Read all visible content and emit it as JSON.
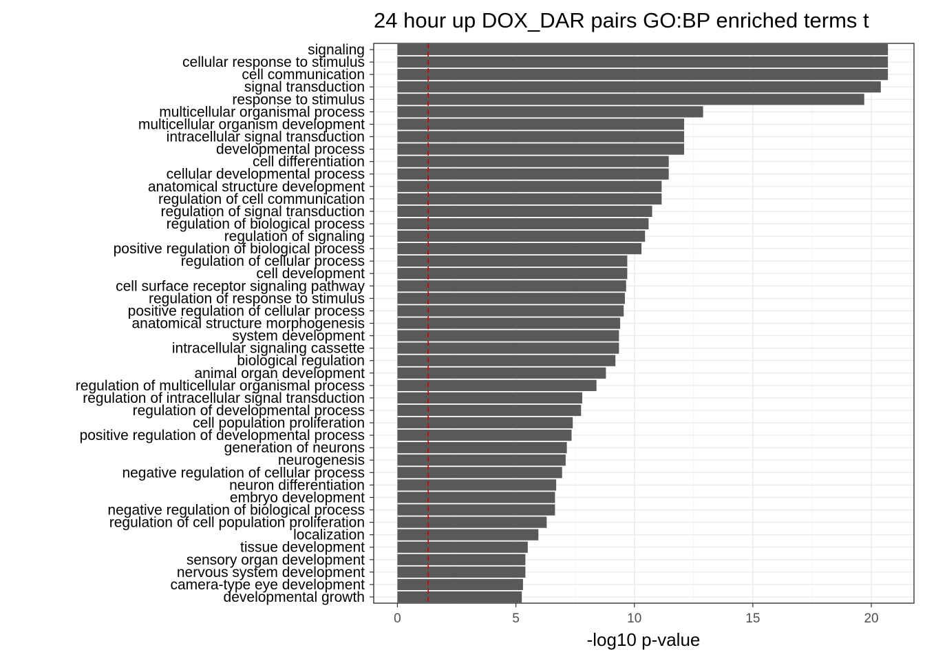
{
  "chart_data": {
    "type": "bar",
    "orientation": "horizontal",
    "title": "24 hour up DOX_DAR pairs GO:BP enriched terms t",
    "xlabel": "-log10 p-value",
    "ylabel": "",
    "xlim": [
      -1.0,
      21.8
    ],
    "x_ticks": [
      0,
      5,
      10,
      15,
      20
    ],
    "grid": true,
    "bar_color": "#595959",
    "threshold": {
      "value": 1.3,
      "color": "#cc0000",
      "style": "dashed"
    },
    "categories": [
      "signaling",
      "cellular response to stimulus",
      "cell communication",
      "signal transduction",
      "response to stimulus",
      "multicellular organismal process",
      "multicellular organism development",
      "intracellular signal transduction",
      "developmental process",
      "cell differentiation",
      "cellular developmental process",
      "anatomical structure development",
      "regulation of cell communication",
      "regulation of signal transduction",
      "regulation of biological process",
      "regulation of signaling",
      "positive regulation of biological process",
      "regulation of cellular process",
      "cell development",
      "cell surface receptor signaling pathway",
      "regulation of response to stimulus",
      "positive regulation of cellular process",
      "anatomical structure morphogenesis",
      "system development",
      "intracellular signaling cassette",
      "biological regulation",
      "animal organ development",
      "regulation of multicellular organismal process",
      "regulation of intracellular signal transduction",
      "regulation of developmental process",
      "cell population proliferation",
      "positive regulation of developmental process",
      "generation of neurons",
      "neurogenesis",
      "negative regulation of cellular process",
      "neuron differentiation",
      "embryo development",
      "negative regulation of biological process",
      "regulation of cell population proliferation",
      "localization",
      "tissue development",
      "sensory organ development",
      "nervous system development",
      "camera-type eye development",
      "developmental growth"
    ],
    "values": [
      20.7,
      20.7,
      20.7,
      20.4,
      19.7,
      12.9,
      12.1,
      12.1,
      12.1,
      11.45,
      11.45,
      11.15,
      11.15,
      10.75,
      10.6,
      10.45,
      10.3,
      9.7,
      9.7,
      9.65,
      9.6,
      9.55,
      9.4,
      9.35,
      9.35,
      9.2,
      8.8,
      8.4,
      7.8,
      7.75,
      7.4,
      7.35,
      7.15,
      7.1,
      6.95,
      6.7,
      6.65,
      6.65,
      6.3,
      5.95,
      5.5,
      5.4,
      5.4,
      5.3,
      5.25
    ]
  }
}
